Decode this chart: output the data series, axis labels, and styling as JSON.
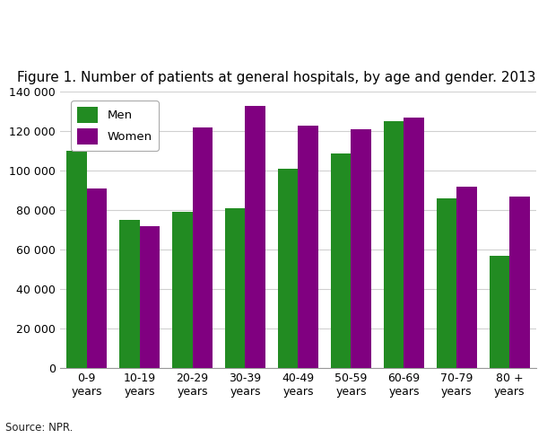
{
  "title": "Figure 1. Number of patients at general hospitals, by age and gender. 2013",
  "categories": [
    "0-9\nyears",
    "10-19\nyears",
    "20-29\nyears",
    "30-39\nyears",
    "40-49\nyears",
    "50-59\nyears",
    "60-69\nyears",
    "70-79\nyears",
    "80 +\nyears"
  ],
  "men_values": [
    110000,
    75000,
    79000,
    81000,
    101000,
    109000,
    125000,
    86000,
    57000
  ],
  "women_values": [
    91000,
    72000,
    122000,
    133000,
    123000,
    121000,
    127000,
    92000,
    87000
  ],
  "men_color": "#228B22",
  "women_color": "#800080",
  "ylim": [
    0,
    140000
  ],
  "ytick_step": 20000,
  "legend_labels": [
    "Men",
    "Women"
  ],
  "source_text": "Source: NPR.",
  "background_color": "#ffffff",
  "grid_color": "#d0d0d0",
  "bar_width": 0.38,
  "title_fontsize": 11,
  "tick_fontsize": 9
}
